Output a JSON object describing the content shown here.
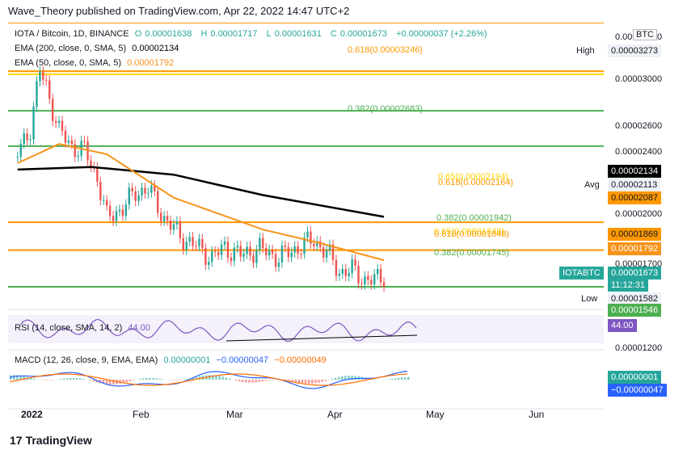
{
  "header": {
    "publish_text": "Wave_Theory published on TradingView.com, Apr 22, 2022 14:47 UTC+2"
  },
  "legend": {
    "symbol": "IOTA / Bitcoin, 1D, BINANCE",
    "o_label": "O",
    "o_value": "0.00001638",
    "h_label": "H",
    "h_value": "0.00001717",
    "l_label": "L",
    "l_value": "0.00001631",
    "c_label": "C",
    "c_value": "0.00001673",
    "change": "+0.00000037 (+2.26%)",
    "ema200_label": "EMA (200, close, 0, SMA, 5)",
    "ema200_value": "0.00002134",
    "ema50_label": "EMA (50, close, 0, SMA, 5)",
    "ema50_value": "0.00001792",
    "rsi_label": "RSI (14, close, SMA, 14, 2)",
    "rsi_value": "44.00",
    "macd_label": "MACD (12, 26, close, 9, EMA, EMA)",
    "macd_v1": "0.00000001",
    "macd_v2": "−0.00000047",
    "macd_v3": "−0.00000049"
  },
  "fib_labels": {
    "top_618": "0.618(0.00003246)",
    "top_382": "0.382(0.00002683)",
    "mid_65": "0.65(0.00002194)",
    "mid_618": "0.618(0.00002164)",
    "sup_382": "0.382(0.00001942)",
    "sup_65": "0.65(0.00001848)",
    "sup_618": "0.618(0.00001848)",
    "low_382": "0.382(0.00001745)"
  },
  "price_axis": {
    "currency": "BTC",
    "ticks": [
      "0.00003600",
      "0.00003000",
      "0.00002600",
      "0.00002400",
      "0.00002000",
      "0.00001700",
      "0.00001400",
      "0.00001200"
    ],
    "high_label": "High",
    "high_value": "0.00003273",
    "ema200_tag": "0.00002134",
    "avg_label": "Avg",
    "avg_value": "0.00002113",
    "tag_2087": "0.00002087",
    "tag_1869": "0.00001869",
    "ema50_tag": "0.00001792",
    "symbol_tag": "IOTABTC",
    "price_tag": "0.00001673",
    "countdown": "11:12:31",
    "low_label": "Low",
    "low_value": "0.00001582",
    "tag_1546": "0.00001546",
    "rsi_tag": "44.00",
    "macd_tag1": "0.00000001",
    "macd_tag2": "−0.00000047"
  },
  "time_axis": [
    "2022",
    "Feb",
    "Mar",
    "Apr",
    "May",
    "Jun"
  ],
  "footer": {
    "logo_text": "TradingView"
  },
  "colors": {
    "up": "#26a69a",
    "down": "#ef5350",
    "ema200": "#000000",
    "ema50": "#f7931a",
    "fib_green": "#4caf50",
    "fib_orange": "#ff9800",
    "fib_yellow": "#ffd600",
    "rsi": "#7e57c2",
    "macd": "#2962ff",
    "signal": "#ff6d00"
  },
  "chart_data": {
    "type": "candlestick",
    "symbol": "IOTA / Bitcoin, 1D, BINANCE",
    "x_range": [
      "2021-12-25",
      "2022-06-30"
    ],
    "y_range": [
      1.5e-05,
      3.65e-05
    ],
    "close_series": [
      [
        "2021-12-28",
        2.62e-05
      ],
      [
        "2022-01-01",
        2.83e-05
      ],
      [
        "2022-01-04",
        3.27e-05
      ],
      [
        "2022-01-06",
        3.15e-05
      ],
      [
        "2022-01-10",
        2.8e-05
      ],
      [
        "2022-01-14",
        2.68e-05
      ],
      [
        "2022-01-18",
        2.65e-05
      ],
      [
        "2022-01-22",
        2.44e-05
      ],
      [
        "2022-01-25",
        2.12e-05
      ],
      [
        "2022-01-30",
        2.2e-05
      ],
      [
        "2022-02-03",
        2.32e-05
      ],
      [
        "2022-02-07",
        2.35e-05
      ],
      [
        "2022-02-12",
        2.12e-05
      ],
      [
        "2022-02-17",
        1.98e-05
      ],
      [
        "2022-02-22",
        1.9e-05
      ],
      [
        "2022-02-27",
        1.81e-05
      ],
      [
        "2022-03-03",
        1.89e-05
      ],
      [
        "2022-03-08",
        1.83e-05
      ],
      [
        "2022-03-14",
        1.88e-05
      ],
      [
        "2022-03-20",
        1.81e-05
      ],
      [
        "2022-03-26",
        1.89e-05
      ],
      [
        "2022-03-31",
        1.95e-05
      ],
      [
        "2022-04-04",
        1.85e-05
      ],
      [
        "2022-04-08",
        1.7e-05
      ],
      [
        "2022-04-12",
        1.71e-05
      ],
      [
        "2022-04-16",
        1.64e-05
      ],
      [
        "2022-04-19",
        1.63e-05
      ],
      [
        "2022-04-22",
        1.67e-05
      ]
    ],
    "ema200": [
      [
        "2021-12-28",
        2.5e-05
      ],
      [
        "2022-01-20",
        2.52e-05
      ],
      [
        "2022-02-15",
        2.46e-05
      ],
      [
        "2022-03-15",
        2.3e-05
      ],
      [
        "2022-04-22",
        2.13e-05
      ]
    ],
    "ema50": [
      [
        "2021-12-28",
        2.55e-05
      ],
      [
        "2022-01-10",
        2.7e-05
      ],
      [
        "2022-01-25",
        2.62e-05
      ],
      [
        "2022-02-15",
        2.28e-05
      ],
      [
        "2022-03-15",
        2.03e-05
      ],
      [
        "2022-04-01",
        1.93e-05
      ],
      [
        "2022-04-22",
        1.79e-05
      ]
    ],
    "horizontal_levels": [
      {
        "value": 3.65e-05,
        "color": "#ff9800"
      },
      {
        "value": 3.27e-05,
        "color": "#ff9800"
      },
      {
        "value": 3.246e-05,
        "color": "#ffd600"
      },
      {
        "value": 2.96e-05,
        "color": "#4caf50"
      },
      {
        "value": 2.683e-05,
        "color": "#4caf50"
      },
      {
        "value": 2.087e-05,
        "color": "#ff9800"
      },
      {
        "value": 1.869e-05,
        "color": "#ff9800"
      },
      {
        "value": 1.582e-05,
        "color": "#4caf50"
      }
    ],
    "rsi": {
      "value": 44.0
    },
    "macd": {
      "macd": 1e-08,
      "signal": -4.7e-07,
      "hist": -4.9e-07
    }
  }
}
